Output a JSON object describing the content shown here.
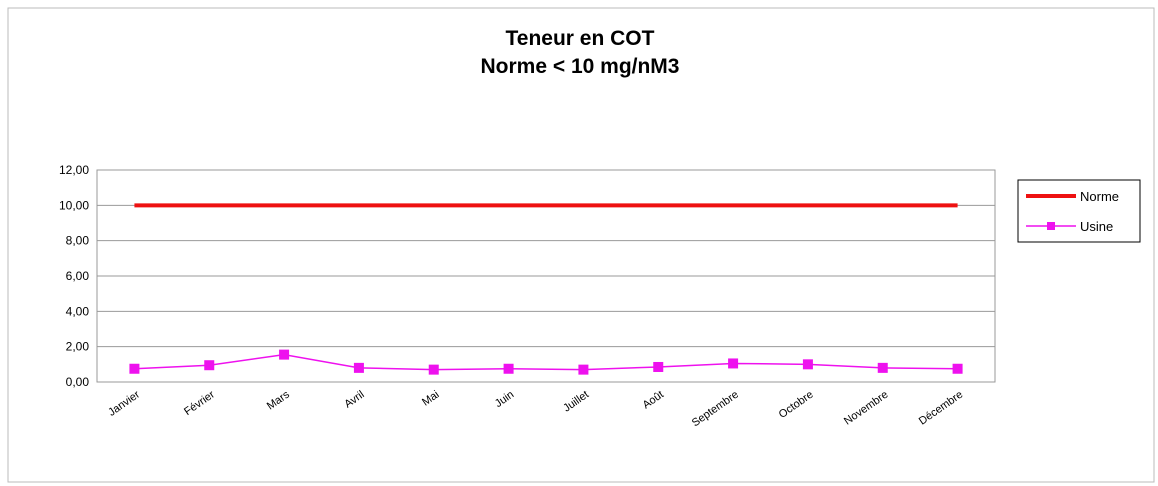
{
  "chart_data": {
    "type": "line",
    "title": "Teneur en COT",
    "subtitle": "Norme  < 10 mg/nM3",
    "categories": [
      "Janvier",
      "Février",
      "Mars",
      "Avril",
      "Mai",
      "Juin",
      "Juillet",
      "Août",
      "Septembre",
      "Octobre",
      "Novembre",
      "Décembre"
    ],
    "series": [
      {
        "name": "Norme",
        "color": "#ee1111",
        "values": [
          10,
          10,
          10,
          10,
          10,
          10,
          10,
          10,
          10,
          10,
          10,
          10
        ]
      },
      {
        "name": "Usine",
        "color": "#ee11ee",
        "values": [
          0.75,
          0.95,
          1.55,
          0.8,
          0.7,
          0.75,
          0.7,
          0.85,
          1.05,
          1.0,
          0.8,
          0.75
        ]
      }
    ],
    "ylim": [
      0,
      12
    ],
    "yticks": [
      {
        "value": 0,
        "label": "0,00"
      },
      {
        "value": 2,
        "label": "2,00"
      },
      {
        "value": 4,
        "label": "4,00"
      },
      {
        "value": 6,
        "label": "6,00"
      },
      {
        "value": 8,
        "label": "8,00"
      },
      {
        "value": 10,
        "label": "10,00"
      },
      {
        "value": 12,
        "label": "12,00"
      }
    ],
    "grid": true,
    "legend": "right"
  }
}
